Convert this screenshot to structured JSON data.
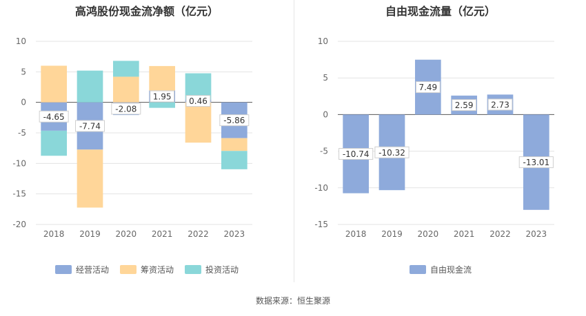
{
  "source": "数据来源：恒生聚源",
  "chart_data": [
    {
      "type": "bar",
      "stacked": true,
      "title": "高鸿股份现金流净额（亿元）",
      "categories": [
        "2018",
        "2019",
        "2020",
        "2021",
        "2022",
        "2023"
      ],
      "ylim": [
        -20,
        10
      ],
      "yticks": [
        10,
        5,
        0,
        -5,
        -10,
        -15,
        -20
      ],
      "grid": true,
      "legend_position": "bottom",
      "series": [
        {
          "name": "经营活动",
          "color": "#8eaadb",
          "values": [
            -4.65,
            -7.74,
            -2.08,
            1.95,
            0.46,
            -5.86
          ],
          "labels": [
            "-4.65",
            "-7.74",
            "-2.08",
            "1.95",
            "0.46",
            "-5.86"
          ]
        },
        {
          "name": "筹资活动",
          "color": "#ffd699",
          "values": [
            6.0,
            -9.5,
            4.2,
            4.0,
            -6.6,
            -2.1
          ]
        },
        {
          "name": "投资活动",
          "color": "#8ad7d9",
          "values": [
            -4.1,
            5.2,
            2.6,
            -0.9,
            4.3,
            -3.0
          ]
        }
      ]
    },
    {
      "type": "bar",
      "title": "自由现金流量（亿元）",
      "categories": [
        "2018",
        "2019",
        "2020",
        "2021",
        "2022",
        "2023"
      ],
      "ylim": [
        -15,
        10
      ],
      "yticks": [
        10,
        5,
        0,
        -5,
        -10,
        -15
      ],
      "grid": true,
      "legend_position": "bottom",
      "series": [
        {
          "name": "自由现金流",
          "color": "#8eaadb",
          "values": [
            -10.74,
            -10.32,
            7.49,
            2.59,
            2.73,
            -13.01
          ],
          "labels": [
            "-10.74",
            "-10.32",
            "7.49",
            "2.59",
            "2.73",
            "-13.01"
          ]
        }
      ]
    }
  ]
}
